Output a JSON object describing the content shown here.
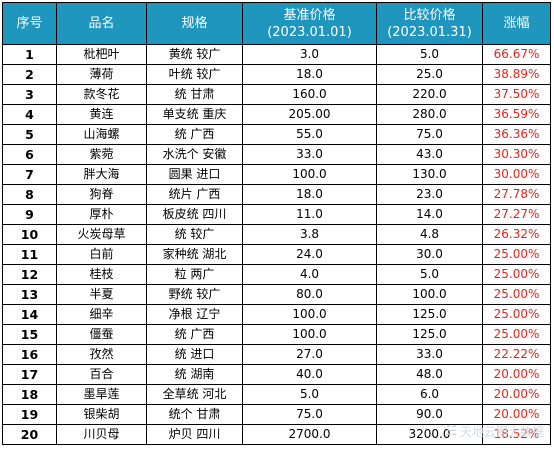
{
  "table": {
    "headers": {
      "index": "序号",
      "name": "品名",
      "spec": "规格",
      "base_price": "基准价格",
      "base_date": "(2023.01.01)",
      "cmp_price": "比较价格",
      "cmp_date": "(2023.01.31)",
      "change": "涨幅"
    },
    "rows": [
      {
        "idx": "1",
        "name": "枇杷叶",
        "spec": "黄统 较广",
        "base": "3.0",
        "cmp": "5.0",
        "pct": "66.67%"
      },
      {
        "idx": "2",
        "name": "薄荷",
        "spec": "叶统 较广",
        "base": "18.0",
        "cmp": "25.0",
        "pct": "38.89%"
      },
      {
        "idx": "3",
        "name": "款冬花",
        "spec": "统 甘肃",
        "base": "160.0",
        "cmp": "220.0",
        "pct": "37.50%"
      },
      {
        "idx": "4",
        "name": "黄连",
        "spec": "单支统 重庆",
        "base": "205.00",
        "cmp": "280.0",
        "pct": "36.59%"
      },
      {
        "idx": "5",
        "name": "山海螺",
        "spec": "统 广西",
        "base": "55.0",
        "cmp": "75.0",
        "pct": "36.36%"
      },
      {
        "idx": "6",
        "name": "紫菀",
        "spec": "水洗个 安徽",
        "base": "33.0",
        "cmp": "43.0",
        "pct": "30.30%"
      },
      {
        "idx": "7",
        "name": "胖大海",
        "spec": "圆果 进口",
        "base": "100.0",
        "cmp": "130.0",
        "pct": "30.00%"
      },
      {
        "idx": "8",
        "name": "狗脊",
        "spec": "统片 广西",
        "base": "18.0",
        "cmp": "23.0",
        "pct": "27.78%"
      },
      {
        "idx": "9",
        "name": "厚朴",
        "spec": "板皮统 四川",
        "base": "11.0",
        "cmp": "14.0",
        "pct": "27.27%"
      },
      {
        "idx": "10",
        "name": "火炭母草",
        "spec": "统 较广",
        "base": "3.8",
        "cmp": "4.8",
        "pct": "26.32%"
      },
      {
        "idx": "11",
        "name": "白前",
        "spec": "家种统 湖北",
        "base": "24.0",
        "cmp": "30.0",
        "pct": "25.00%"
      },
      {
        "idx": "12",
        "name": "桂枝",
        "spec": "粒 两广",
        "base": "4.0",
        "cmp": "5.0",
        "pct": "25.00%"
      },
      {
        "idx": "13",
        "name": "半夏",
        "spec": "野统 较广",
        "base": "80.0",
        "cmp": "100.0",
        "pct": "25.00%"
      },
      {
        "idx": "14",
        "name": "细辛",
        "spec": "净根 辽宁",
        "base": "100.0",
        "cmp": "125.0",
        "pct": "25.00%"
      },
      {
        "idx": "15",
        "name": "僵蚕",
        "spec": "统 广西",
        "base": "100.0",
        "cmp": "125.0",
        "pct": "25.00%"
      },
      {
        "idx": "16",
        "name": "孜然",
        "spec": "统 进口",
        "base": "27.0",
        "cmp": "33.0",
        "pct": "22.22%"
      },
      {
        "idx": "17",
        "name": "百合",
        "spec": "统 湖南",
        "base": "40.0",
        "cmp": "48.0",
        "pct": "20.00%"
      },
      {
        "idx": "18",
        "name": "墨旱莲",
        "spec": "全草统 河北",
        "base": "5.0",
        "cmp": "6.0",
        "pct": "20.00%"
      },
      {
        "idx": "19",
        "name": "银柴胡",
        "spec": "统个 甘肃",
        "base": "75.0",
        "cmp": "90.0",
        "pct": "20.00%"
      },
      {
        "idx": "20",
        "name": "川贝母",
        "spec": "炉贝 四川",
        "base": "2700.0",
        "cmp": "3200.0",
        "pct": "18.52%"
      }
    ]
  },
  "watermark": {
    "text": "天地云图大数据",
    "icon": "wechat-icon"
  },
  "colors": {
    "header_bg": "#1e96be",
    "header_text": "#ffffff",
    "pct_text": "#e0241c"
  }
}
